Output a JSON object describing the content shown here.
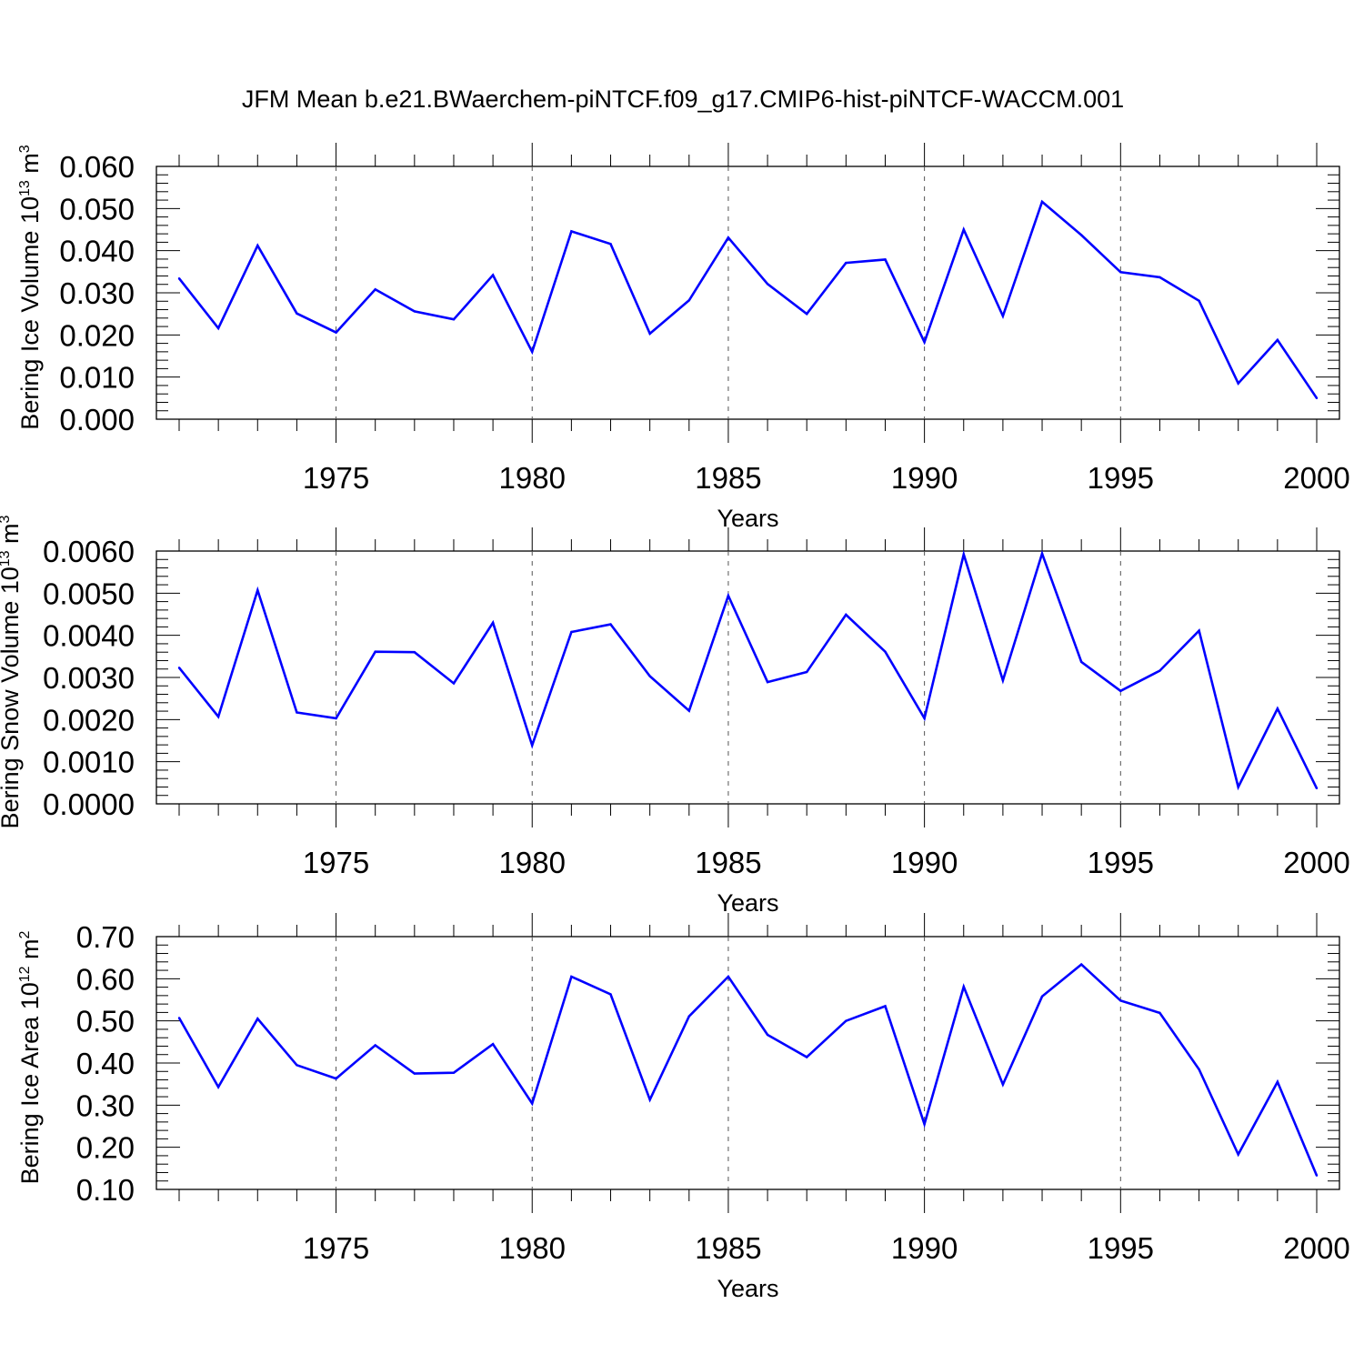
{
  "title": "JFM Mean b.e21.BWaerchem-piNTCF.f09_g17.CMIP6-hist-piNTCF-WACCM.001",
  "colors": {
    "line": "#0000ff",
    "axis": "#000000",
    "grid": "#555555"
  },
  "chart_data": [
    {
      "type": "line",
      "ylabel": {
        "text": "Bering Ice Volume 10",
        "exp": "13",
        "unit": " m",
        "unit_exp": "3"
      },
      "xlabel": "Years",
      "xlim": [
        1971,
        2000
      ],
      "ylim": [
        0.0,
        0.06
      ],
      "yticks": [
        0.0,
        0.01,
        0.02,
        0.03,
        0.04,
        0.05,
        0.06
      ],
      "ytick_labels": [
        "0.000",
        "0.010",
        "0.020",
        "0.030",
        "0.040",
        "0.050",
        "0.060"
      ],
      "xticks": [
        1975,
        1980,
        1985,
        1990,
        1995,
        2000
      ],
      "xtick_labels": [
        "1975",
        "1980",
        "1985",
        "1990",
        "1995",
        "2000"
      ],
      "vgrid": "dashed at major x ticks",
      "series": [
        {
          "x": [
            1971,
            1972,
            1973,
            1974,
            1975,
            1976,
            1977,
            1978,
            1979,
            1980,
            1981,
            1982,
            1983,
            1984,
            1985,
            1986,
            1987,
            1988,
            1989,
            1990,
            1991,
            1992,
            1993,
            1994,
            1995,
            1996,
            1997,
            1998,
            1999,
            2000
          ],
          "values": [
            0.0334,
            0.0216,
            0.0412,
            0.0251,
            0.0206,
            0.0308,
            0.0256,
            0.0237,
            0.0342,
            0.016,
            0.0446,
            0.0416,
            0.0203,
            0.0282,
            0.0431,
            0.0321,
            0.025,
            0.0371,
            0.0379,
            0.0183,
            0.045,
            0.0245,
            0.0516,
            0.0437,
            0.0349,
            0.0337,
            0.0281,
            0.0085,
            0.0188,
            0.005
          ]
        }
      ]
    },
    {
      "type": "line",
      "ylabel": {
        "text": "Bering Snow Volume 10",
        "exp": "13",
        "unit": " m",
        "unit_exp": "3"
      },
      "xlabel": "Years",
      "xlim": [
        1971,
        2000
      ],
      "ylim": [
        0.0,
        0.006
      ],
      "yticks": [
        0.0,
        0.001,
        0.002,
        0.003,
        0.004,
        0.005,
        0.006
      ],
      "ytick_labels": [
        "0.0000",
        "0.0010",
        "0.0020",
        "0.0030",
        "0.0040",
        "0.0050",
        "0.0060"
      ],
      "xticks": [
        1975,
        1980,
        1985,
        1990,
        1995,
        2000
      ],
      "xtick_labels": [
        "1975",
        "1980",
        "1985",
        "1990",
        "1995",
        "2000"
      ],
      "vgrid": "dashed at major x ticks",
      "series": [
        {
          "x": [
            1971,
            1972,
            1973,
            1974,
            1975,
            1976,
            1977,
            1978,
            1979,
            1980,
            1981,
            1982,
            1983,
            1984,
            1985,
            1986,
            1987,
            1988,
            1989,
            1990,
            1991,
            1992,
            1993,
            1994,
            1995,
            1996,
            1997,
            1998,
            1999,
            2000
          ],
          "values": [
            0.00323,
            0.00207,
            0.00507,
            0.00217,
            0.00203,
            0.00361,
            0.0036,
            0.00286,
            0.0043,
            0.00139,
            0.00408,
            0.00426,
            0.00303,
            0.00221,
            0.00494,
            0.00289,
            0.00313,
            0.00449,
            0.00361,
            0.00203,
            0.00592,
            0.00293,
            0.00594,
            0.00337,
            0.00268,
            0.00316,
            0.00411,
            0.0004,
            0.00226,
            0.00037
          ]
        }
      ]
    },
    {
      "type": "line",
      "ylabel": {
        "text": "Bering Ice Area 10",
        "exp": "12",
        "unit": " m",
        "unit_exp": "2"
      },
      "xlabel": "Years",
      "xlim": [
        1971,
        2000
      ],
      "ylim": [
        0.1,
        0.7
      ],
      "yticks": [
        0.1,
        0.2,
        0.3,
        0.4,
        0.5,
        0.6,
        0.7
      ],
      "ytick_labels": [
        "0.10",
        "0.20",
        "0.30",
        "0.40",
        "0.50",
        "0.60",
        "0.70"
      ],
      "xticks": [
        1975,
        1980,
        1985,
        1990,
        1995,
        2000
      ],
      "xtick_labels": [
        "1975",
        "1980",
        "1985",
        "1990",
        "1995",
        "2000"
      ],
      "vgrid": "dashed at major x ticks",
      "series": [
        {
          "x": [
            1971,
            1972,
            1973,
            1974,
            1975,
            1976,
            1977,
            1978,
            1979,
            1980,
            1981,
            1982,
            1983,
            1984,
            1985,
            1986,
            1987,
            1988,
            1989,
            1990,
            1991,
            1992,
            1993,
            1994,
            1995,
            1996,
            1997,
            1998,
            1999,
            2000
          ],
          "values": [
            0.507,
            0.343,
            0.505,
            0.395,
            0.363,
            0.442,
            0.375,
            0.377,
            0.445,
            0.304,
            0.605,
            0.563,
            0.313,
            0.511,
            0.605,
            0.467,
            0.414,
            0.5,
            0.535,
            0.255,
            0.581,
            0.349,
            0.558,
            0.634,
            0.548,
            0.519,
            0.385,
            0.183,
            0.355,
            0.133
          ]
        }
      ]
    }
  ]
}
